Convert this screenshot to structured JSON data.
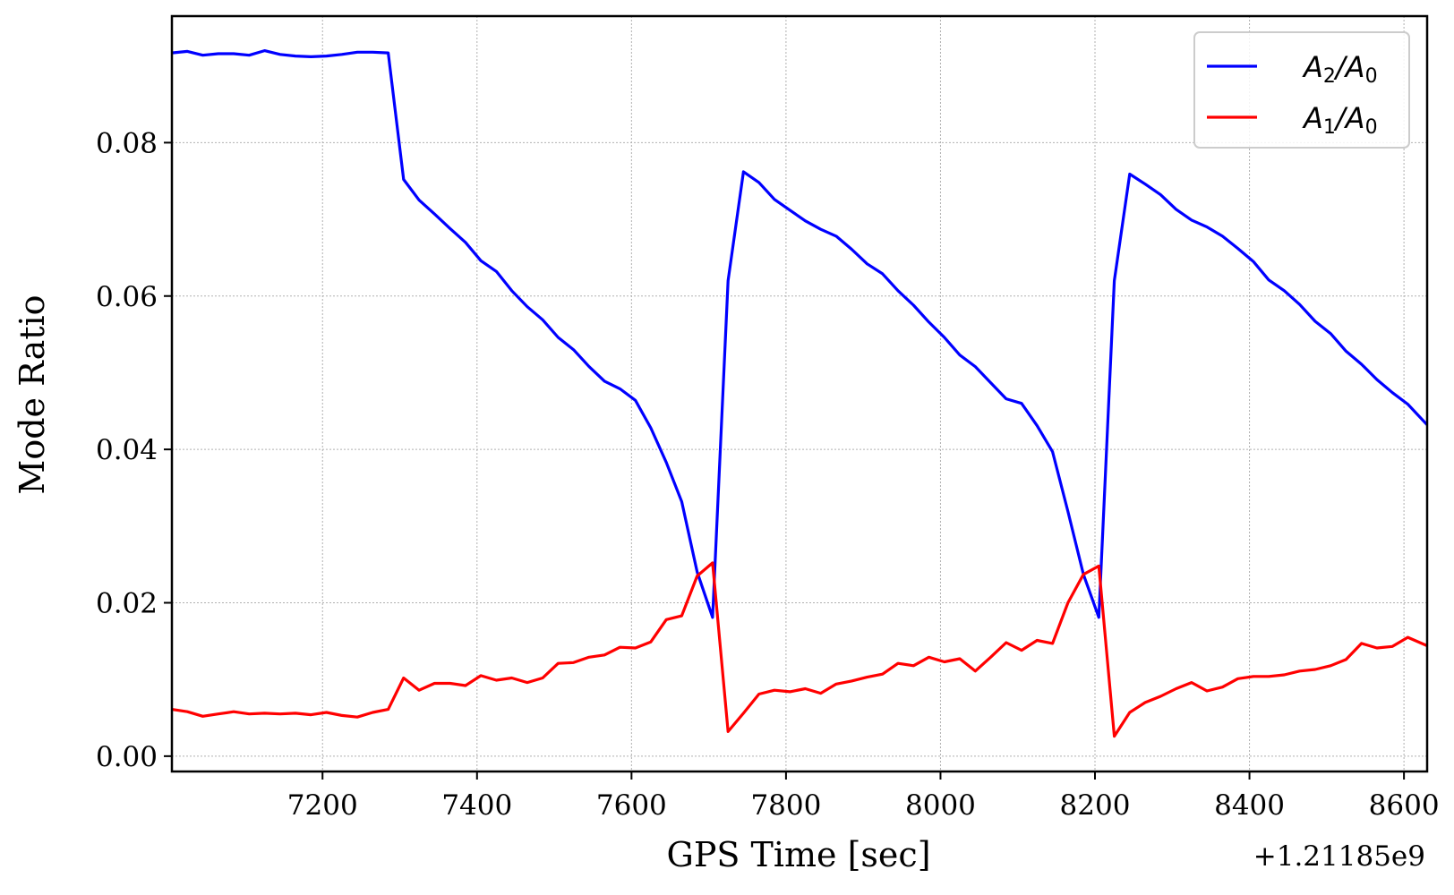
{
  "chart_data": {
    "type": "line",
    "title": "",
    "xlabel": "GPS Time [sec]",
    "ylabel": "Mode Ratio",
    "x_offset_text": "+1.21185e9",
    "xlim": [
      7005,
      8630
    ],
    "ylim": [
      -0.002,
      0.0965
    ],
    "xticks": [
      7200,
      7400,
      7600,
      7800,
      8000,
      8200,
      8400,
      8600
    ],
    "xtick_labels": [
      "7200",
      "7400",
      "7600",
      "7800",
      "8000",
      "8200",
      "8400",
      "8600"
    ],
    "yticks": [
      0.0,
      0.02,
      0.04,
      0.06,
      0.08
    ],
    "ytick_labels": [
      "0.00",
      "0.02",
      "0.04",
      "0.06",
      "0.08"
    ],
    "grid": true,
    "legend_position": "top-right",
    "series": [
      {
        "name": "A2/A0",
        "label_main": "A",
        "label_num_sub": "2",
        "label_den_sub": "0",
        "color": "#0000ff",
        "points": [
          [
            7005,
            0.0917
          ],
          [
            7025,
            0.0919
          ],
          [
            7045,
            0.0914
          ],
          [
            7065,
            0.0916
          ],
          [
            7085,
            0.0916
          ],
          [
            7105,
            0.0914
          ],
          [
            7125,
            0.092
          ],
          [
            7145,
            0.0915
          ],
          [
            7165,
            0.0913
          ],
          [
            7185,
            0.0912
          ],
          [
            7205,
            0.0913
          ],
          [
            7225,
            0.0915
          ],
          [
            7245,
            0.0918
          ],
          [
            7265,
            0.0918
          ],
          [
            7285,
            0.0917
          ],
          [
            7305,
            0.0752
          ],
          [
            7325,
            0.0725
          ],
          [
            7345,
            0.0707
          ],
          [
            7365,
            0.0688
          ],
          [
            7385,
            0.067
          ],
          [
            7405,
            0.0646
          ],
          [
            7425,
            0.0632
          ],
          [
            7445,
            0.0607
          ],
          [
            7465,
            0.0586
          ],
          [
            7485,
            0.0569
          ],
          [
            7505,
            0.0546
          ],
          [
            7525,
            0.053
          ],
          [
            7545,
            0.0508
          ],
          [
            7565,
            0.0489
          ],
          [
            7585,
            0.0479
          ],
          [
            7605,
            0.0464
          ],
          [
            7625,
            0.0428
          ],
          [
            7645,
            0.0383
          ],
          [
            7665,
            0.0332
          ],
          [
            7685,
            0.024
          ],
          [
            7705,
            0.0181
          ],
          [
            7725,
            0.062
          ],
          [
            7745,
            0.0762
          ],
          [
            7765,
            0.0748
          ],
          [
            7785,
            0.0726
          ],
          [
            7805,
            0.0712
          ],
          [
            7825,
            0.0698
          ],
          [
            7845,
            0.0687
          ],
          [
            7865,
            0.0678
          ],
          [
            7885,
            0.0661
          ],
          [
            7905,
            0.0642
          ],
          [
            7925,
            0.0629
          ],
          [
            7945,
            0.0607
          ],
          [
            7965,
            0.0588
          ],
          [
            7985,
            0.0566
          ],
          [
            8005,
            0.0546
          ],
          [
            8025,
            0.0523
          ],
          [
            8045,
            0.0508
          ],
          [
            8065,
            0.0487
          ],
          [
            8085,
            0.0466
          ],
          [
            8105,
            0.046
          ],
          [
            8125,
            0.0431
          ],
          [
            8145,
            0.0397
          ],
          [
            8165,
            0.0319
          ],
          [
            8185,
            0.0237
          ],
          [
            8205,
            0.0181
          ],
          [
            8225,
            0.062
          ],
          [
            8245,
            0.0759
          ],
          [
            8265,
            0.0746
          ],
          [
            8285,
            0.0732
          ],
          [
            8305,
            0.0713
          ],
          [
            8325,
            0.0699
          ],
          [
            8345,
            0.069
          ],
          [
            8365,
            0.0678
          ],
          [
            8385,
            0.0662
          ],
          [
            8405,
            0.0645
          ],
          [
            8425,
            0.0621
          ],
          [
            8445,
            0.0607
          ],
          [
            8465,
            0.0589
          ],
          [
            8485,
            0.0567
          ],
          [
            8505,
            0.0551
          ],
          [
            8525,
            0.0528
          ],
          [
            8545,
            0.0511
          ],
          [
            8565,
            0.0491
          ],
          [
            8585,
            0.0474
          ],
          [
            8605,
            0.0459
          ],
          [
            8630,
            0.0432
          ]
        ]
      },
      {
        "name": "A1/A0",
        "label_main": "A",
        "label_num_sub": "1",
        "label_den_sub": "0",
        "color": "#ff0000",
        "points": [
          [
            7005,
            0.0061
          ],
          [
            7025,
            0.0058
          ],
          [
            7045,
            0.0052
          ],
          [
            7065,
            0.0055
          ],
          [
            7085,
            0.0058
          ],
          [
            7105,
            0.0055
          ],
          [
            7125,
            0.0056
          ],
          [
            7145,
            0.0055
          ],
          [
            7165,
            0.0056
          ],
          [
            7185,
            0.0054
          ],
          [
            7205,
            0.0057
          ],
          [
            7225,
            0.0053
          ],
          [
            7245,
            0.0051
          ],
          [
            7265,
            0.0057
          ],
          [
            7285,
            0.0061
          ],
          [
            7305,
            0.0102
          ],
          [
            7325,
            0.0086
          ],
          [
            7345,
            0.0095
          ],
          [
            7365,
            0.0095
          ],
          [
            7385,
            0.0092
          ],
          [
            7405,
            0.0105
          ],
          [
            7425,
            0.0099
          ],
          [
            7445,
            0.0102
          ],
          [
            7465,
            0.0096
          ],
          [
            7485,
            0.0102
          ],
          [
            7505,
            0.0121
          ],
          [
            7525,
            0.0122
          ],
          [
            7545,
            0.0129
          ],
          [
            7565,
            0.0132
          ],
          [
            7585,
            0.0142
          ],
          [
            7605,
            0.0141
          ],
          [
            7625,
            0.0149
          ],
          [
            7645,
            0.0178
          ],
          [
            7665,
            0.0183
          ],
          [
            7685,
            0.0235
          ],
          [
            7705,
            0.0252
          ],
          [
            7725,
            0.0032
          ],
          [
            7745,
            0.0056
          ],
          [
            7765,
            0.0081
          ],
          [
            7785,
            0.0086
          ],
          [
            7805,
            0.0084
          ],
          [
            7825,
            0.0088
          ],
          [
            7845,
            0.0082
          ],
          [
            7865,
            0.0094
          ],
          [
            7885,
            0.0098
          ],
          [
            7905,
            0.0103
          ],
          [
            7925,
            0.0107
          ],
          [
            7945,
            0.0121
          ],
          [
            7965,
            0.0118
          ],
          [
            7985,
            0.0129
          ],
          [
            8005,
            0.0123
          ],
          [
            8025,
            0.0127
          ],
          [
            8045,
            0.0111
          ],
          [
            8065,
            0.0129
          ],
          [
            8085,
            0.0148
          ],
          [
            8105,
            0.0138
          ],
          [
            8125,
            0.0151
          ],
          [
            8145,
            0.0147
          ],
          [
            8165,
            0.02
          ],
          [
            8185,
            0.0237
          ],
          [
            8205,
            0.0248
          ],
          [
            8225,
            0.0026
          ],
          [
            8245,
            0.0057
          ],
          [
            8265,
            0.007
          ],
          [
            8285,
            0.0078
          ],
          [
            8305,
            0.0088
          ],
          [
            8325,
            0.0096
          ],
          [
            8345,
            0.0085
          ],
          [
            8365,
            0.009
          ],
          [
            8385,
            0.0101
          ],
          [
            8405,
            0.0104
          ],
          [
            8425,
            0.0104
          ],
          [
            8445,
            0.0106
          ],
          [
            8465,
            0.0111
          ],
          [
            8485,
            0.0113
          ],
          [
            8505,
            0.0118
          ],
          [
            8525,
            0.0126
          ],
          [
            8545,
            0.0147
          ],
          [
            8565,
            0.0141
          ],
          [
            8585,
            0.0143
          ],
          [
            8605,
            0.0155
          ],
          [
            8630,
            0.0144
          ]
        ]
      }
    ]
  }
}
